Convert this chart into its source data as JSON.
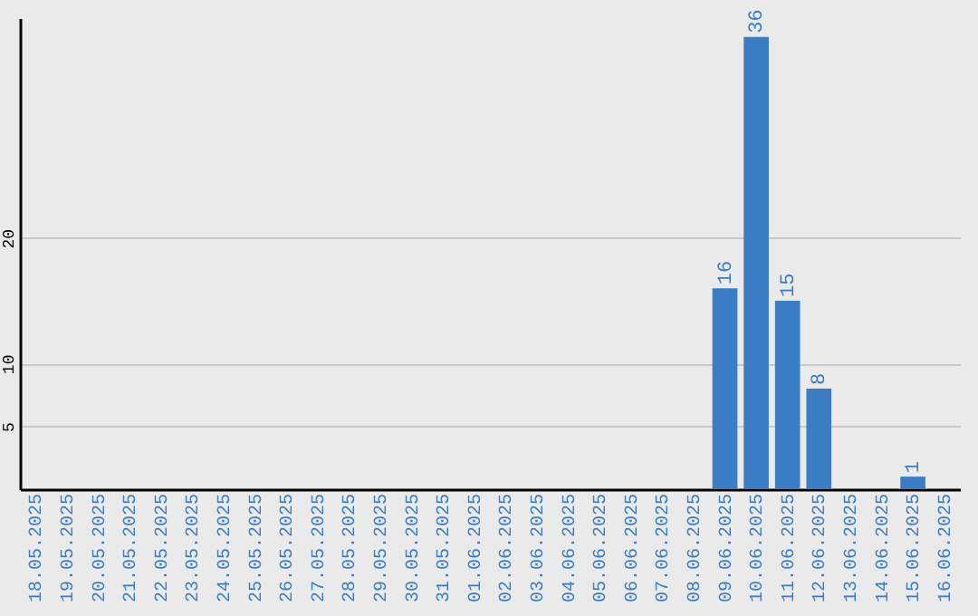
{
  "chart_data": {
    "type": "bar",
    "categories": [
      "18.05.2025",
      "19.05.2025",
      "20.05.2025",
      "21.05.2025",
      "22.05.2025",
      "23.05.2025",
      "24.05.2025",
      "25.05.2025",
      "26.05.2025",
      "27.05.2025",
      "28.05.2025",
      "29.05.2025",
      "30.05.2025",
      "31.05.2025",
      "01.06.2025",
      "02.06.2025",
      "03.06.2025",
      "04.06.2025",
      "05.06.2025",
      "06.06.2025",
      "07.06.2025",
      "08.06.2025",
      "09.06.2025",
      "10.06.2025",
      "11.06.2025",
      "12.06.2025",
      "13.06.2025",
      "14.06.2025",
      "15.06.2025",
      "16.06.2025"
    ],
    "values": [
      0,
      0,
      0,
      0,
      0,
      0,
      0,
      0,
      0,
      0,
      0,
      0,
      0,
      0,
      0,
      0,
      0,
      0,
      0,
      0,
      0,
      0,
      16,
      36,
      15,
      8,
      0,
      0,
      1,
      0
    ],
    "value_labels": [
      null,
      null,
      null,
      null,
      null,
      null,
      null,
      null,
      null,
      null,
      null,
      null,
      null,
      null,
      null,
      null,
      null,
      null,
      null,
      null,
      null,
      null,
      "16",
      "36",
      "15",
      "8",
      null,
      null,
      "1",
      null
    ],
    "color": "#3a7dc4",
    "ylim": [
      0,
      37.5
    ],
    "yticks": [
      5,
      10,
      20
    ],
    "grid": "y"
  }
}
